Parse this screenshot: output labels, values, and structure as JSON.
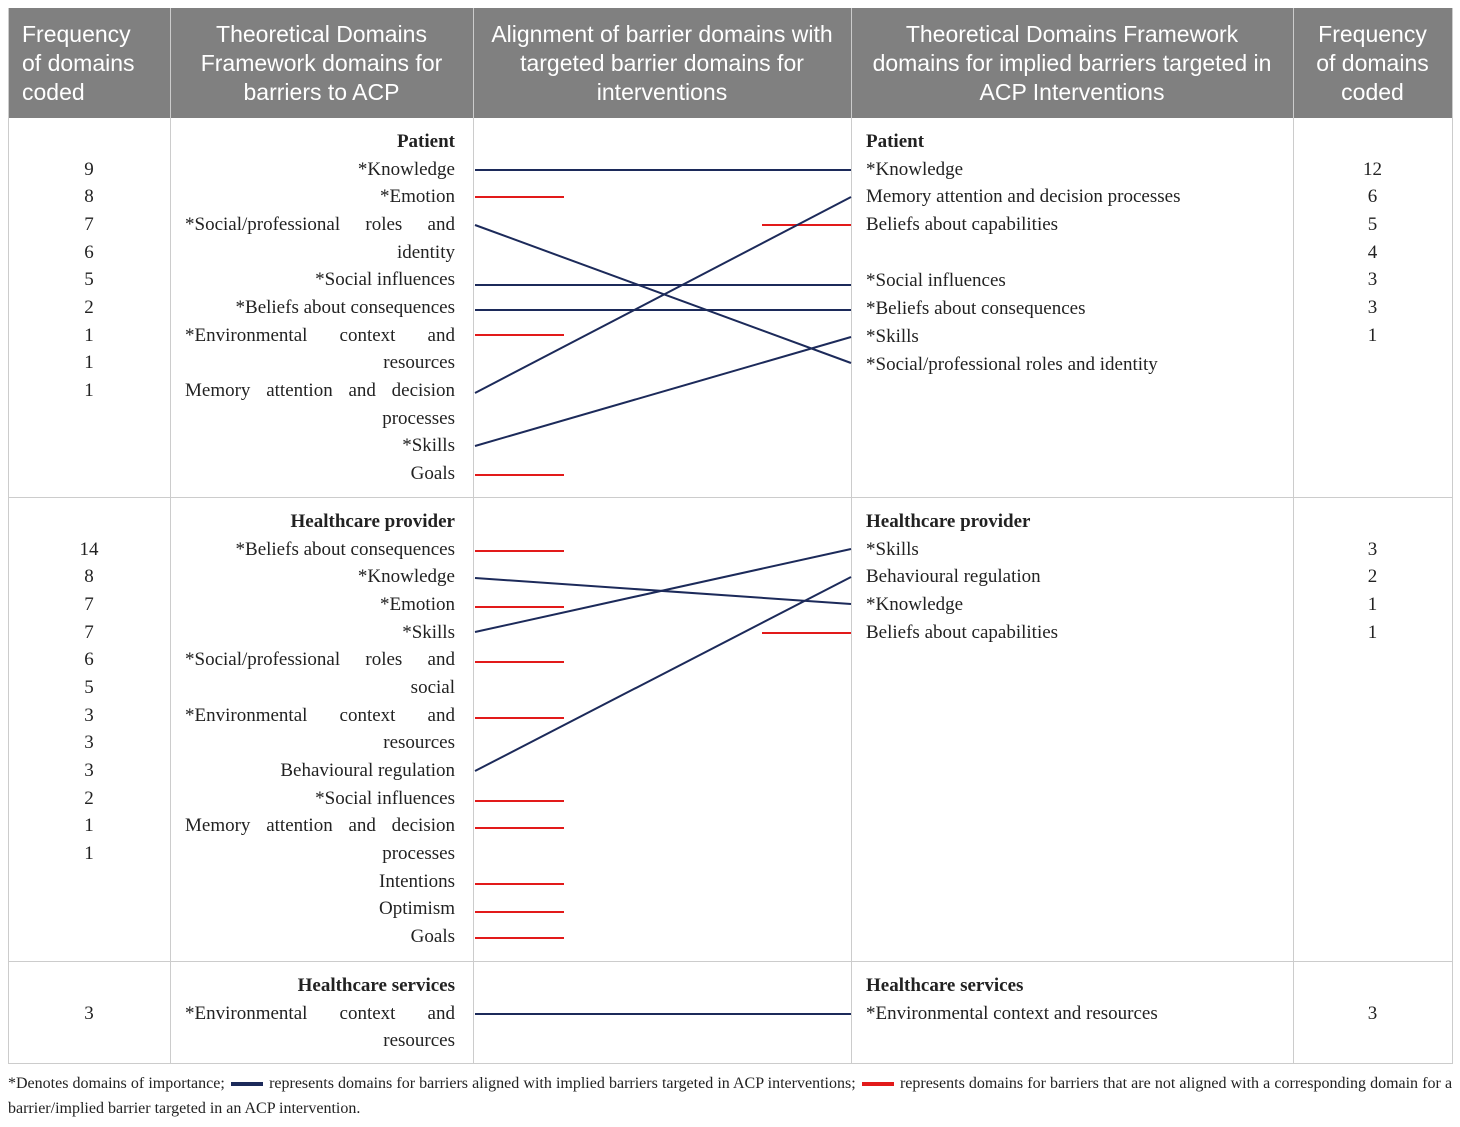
{
  "table": {
    "headers": [
      "Frequency of domains coded",
      "Theoretical Domains Framework domains for barriers to ACP",
      "Alignment of barrier domains with targeted barrier domains for interventions",
      "Theoretical Domains Framework domains for implied barriers targeted in ACP Interventions",
      "Frequency of domains coded"
    ],
    "sections": [
      {
        "left_title": "Patient",
        "left_frequencies": [
          9,
          8,
          7,
          6,
          5,
          2,
          1,
          1,
          1
        ],
        "left_domains": [
          "*Knowledge",
          "*Emotion",
          "*Social/professional roles and identity",
          "*Social influences",
          "*Beliefs about consequences",
          "*Environmental context and resources",
          "Memory attention and decision processes",
          "*Skills",
          "Goals"
        ],
        "right_title": "Patient",
        "right_domains": [
          "*Knowledge",
          "Memory attention and decision processes",
          "Beliefs about capabilities",
          "*Social influences",
          "*Beliefs about consequences",
          "*Skills",
          "*Social/professional roles and identity"
        ],
        "right_frequencies": [
          12,
          6,
          5,
          4,
          3,
          3,
          1
        ]
      },
      {
        "left_title": "Healthcare provider",
        "left_frequencies": [
          14,
          8,
          7,
          7,
          6,
          5,
          3,
          3,
          3,
          2,
          1,
          1
        ],
        "left_domains": [
          "*Beliefs about consequences",
          "*Knowledge",
          "*Emotion",
          "*Skills",
          "*Social/professional roles and social",
          "*Environmental context and resources",
          "Behavioural regulation",
          "*Social influences",
          "Memory attention and decision processes",
          "Intentions",
          "Optimism",
          "Goals"
        ],
        "right_title": "Healthcare provider",
        "right_domains": [
          "*Skills",
          "Behavioural regulation",
          "*Knowledge",
          "Beliefs about capabilities"
        ],
        "right_frequencies": [
          3,
          2,
          1,
          1
        ]
      },
      {
        "left_title": "Healthcare services",
        "left_frequencies": [
          3
        ],
        "left_domains": [
          "*Environmental context and resources"
        ],
        "right_title": "Healthcare services",
        "right_domains": [
          "*Environmental context and resources"
        ],
        "right_frequencies": [
          3
        ]
      }
    ]
  },
  "footnote": {
    "importance": "*Denotes domains of importance;",
    "aligned": "represents domains for barriers aligned with implied barriers targeted in ACP interventions;",
    "not_aligned": "represents domains for barriers that are not aligned with a corresponding domain for a barrier/implied barrier targeted in an ACP intervention."
  }
}
